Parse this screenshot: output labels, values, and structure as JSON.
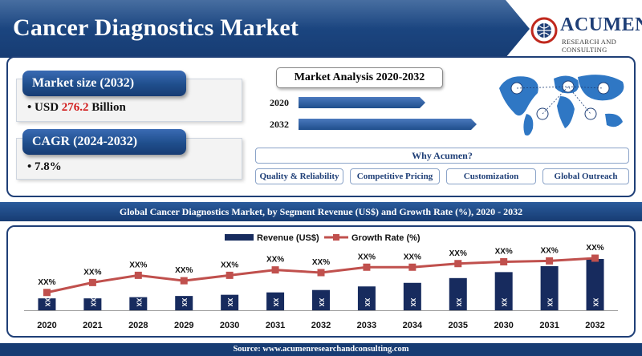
{
  "header": {
    "title": "Cancer Diagnostics Market"
  },
  "logo": {
    "name": "ACUMEN",
    "tagline": "RESEARCH AND CONSULTING"
  },
  "metrics": [
    {
      "label": "Market size (2032)",
      "value_prefix": "USD ",
      "value_highlight": "276.2",
      "value_suffix": " Billion"
    },
    {
      "label": "CAGR (2024-2032)",
      "value_prefix": "",
      "value_highlight": "",
      "value_suffix": "7.8%"
    }
  ],
  "analysis": {
    "title": "Market Analysis 2020-2032",
    "years": [
      "2020",
      "2032"
    ]
  },
  "why": {
    "title": "Why Acumen?",
    "items": [
      "Quality & Reliability",
      "Competitive Pricing",
      "Customization",
      "Global Outreach"
    ]
  },
  "chart_banner": "Global Cancer Diagnostics Market, by Segment Revenue (US$) and Growth Rate (%), 2020 - 2032",
  "chart_data": {
    "type": "bar",
    "categories": [
      "2020",
      "2021",
      "2028",
      "2029",
      "2030",
      "2031",
      "2032",
      "2033",
      "2034",
      "2035",
      "2030",
      "2031",
      "2032"
    ],
    "series": [
      {
        "name": "Revenue (US$)",
        "type": "bar",
        "values": [
          1,
          1,
          1.1,
          1.2,
          1.3,
          1.5,
          1.7,
          2.0,
          2.3,
          2.7,
          3.2,
          3.7,
          4.3
        ],
        "labels": [
          "XX",
          "XX",
          "XX",
          "XX",
          "XX",
          "XX",
          "XX",
          "XX",
          "XX",
          "XX",
          "XX",
          "XX",
          "XX"
        ]
      },
      {
        "name": "Growth Rate (%)",
        "type": "line",
        "values": [
          1.2,
          2.3,
          3.1,
          2.5,
          3.1,
          3.7,
          3.4,
          4.0,
          4.0,
          4.4,
          4.6,
          4.7,
          5.0
        ],
        "labels": [
          "XX%",
          "XX%",
          "XX%",
          "XX%",
          "XX%",
          "XX%",
          "XX%",
          "XX%",
          "XX%",
          "XX%",
          "XX%",
          "XX%",
          "XX%"
        ]
      }
    ],
    "legend_position": "top-center",
    "colors": {
      "bar": "#172b5e",
      "line": "#c0504d"
    }
  },
  "footer": {
    "source": "Source: www.acumenresearchandconsulting.com"
  }
}
